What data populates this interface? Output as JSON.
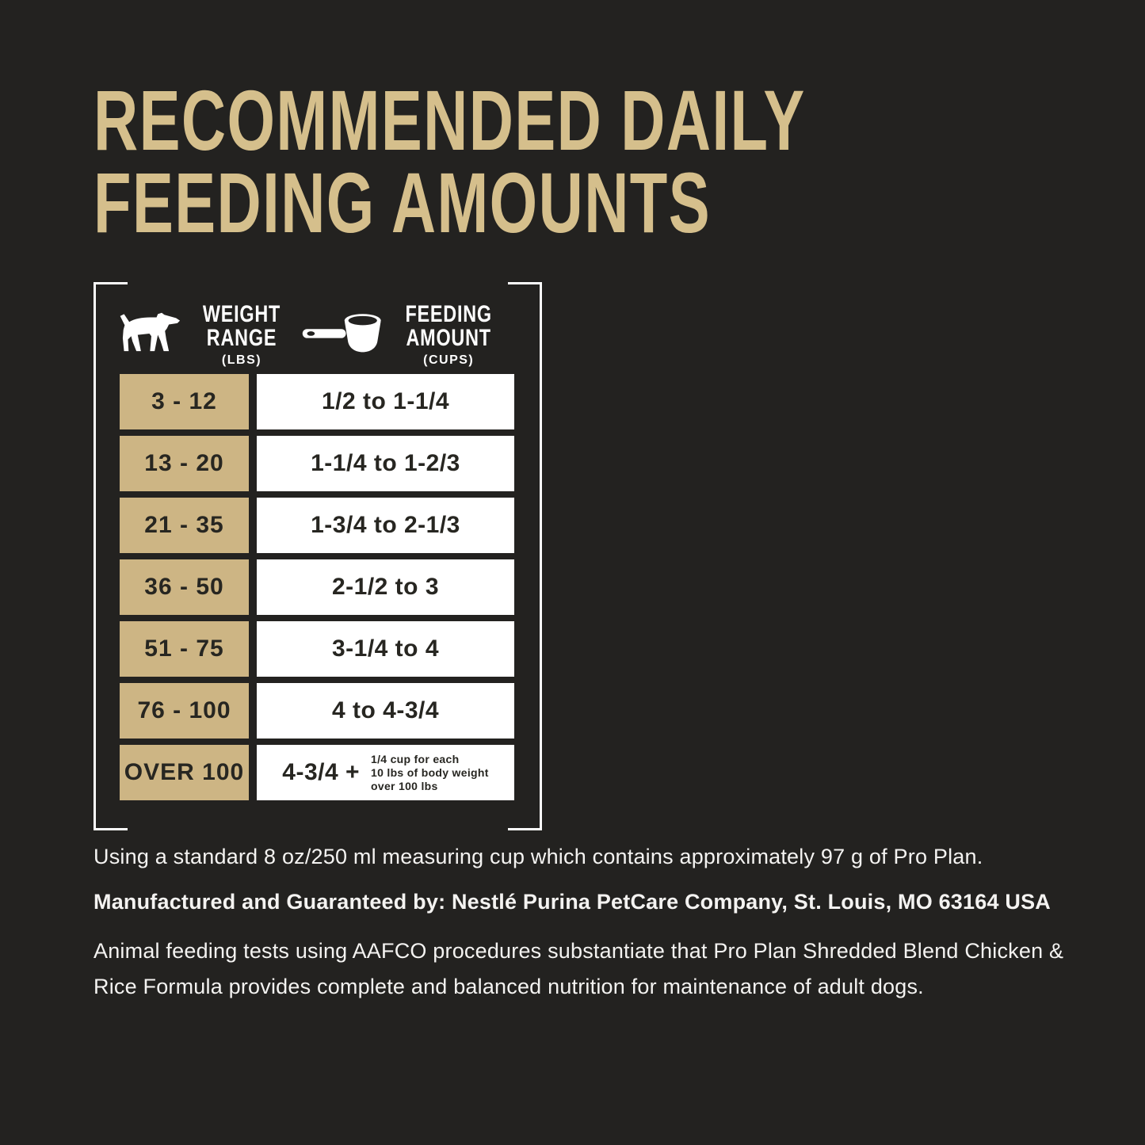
{
  "colors": {
    "background": "#232220",
    "tan_cell": "#cdb584",
    "title_gold": "#d5bf8c",
    "cell_text": "#272621",
    "white": "#ffffff"
  },
  "title": {
    "line1": "RECOMMENDED DAILY",
    "line2": "FEEDING AMOUNTS"
  },
  "table": {
    "columns": [
      {
        "icon": "dog-icon",
        "label_line1": "WEIGHT",
        "label_line2": "RANGE",
        "unit": "(LBS)"
      },
      {
        "icon": "measuring-cup-icon",
        "label_line1": "FEEDING",
        "label_line2": "AMOUNT",
        "unit": "(CUPS)"
      }
    ],
    "rows": [
      {
        "weight": "3 - 12",
        "amount": "1/2 to 1-1/4"
      },
      {
        "weight": "13 - 20",
        "amount": "1-1/4 to 1-2/3"
      },
      {
        "weight": "21 - 35",
        "amount": "1-3/4 to 2-1/3"
      },
      {
        "weight": "36 - 50",
        "amount": "2-1/2 to 3"
      },
      {
        "weight": "51 - 75",
        "amount": "3-1/4 to 4"
      },
      {
        "weight": "76 - 100",
        "amount": "4 to 4-3/4"
      },
      {
        "weight": "OVER 100",
        "amount": "4-3/4 +",
        "amount_note_lines": [
          "1/4 cup for each",
          "10 lbs of body weight",
          "over 100 lbs"
        ]
      }
    ]
  },
  "footnotes": {
    "measuring_cup": "Using a standard 8 oz/250 ml measuring cup which contains approximately 97 g of Pro Plan.",
    "manufacturer": "Manufactured and Guaranteed by: Nestlé Purina PetCare Company, St. Louis, MO 63164 USA",
    "aafco": "Animal feeding tests using AAFCO procedures substantiate that Pro Plan Shredded Blend Chicken & Rice Formula provides complete and balanced nutrition for maintenance of adult dogs."
  }
}
